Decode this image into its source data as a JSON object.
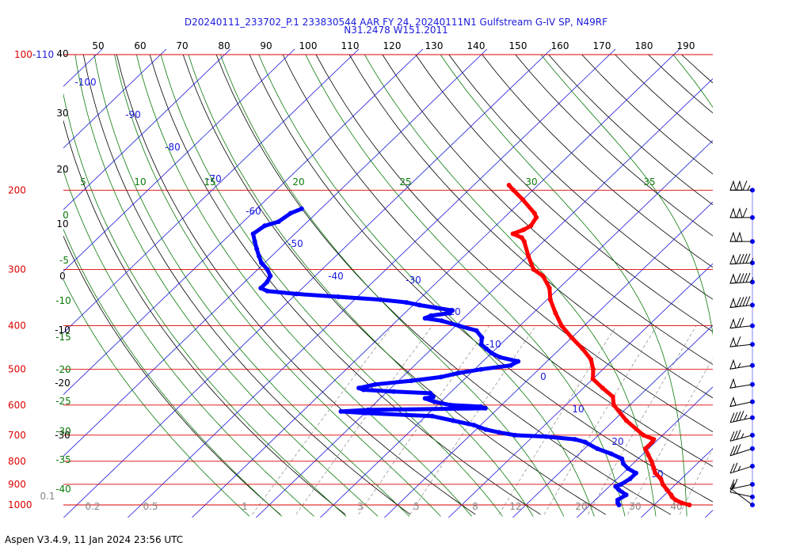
{
  "header": {
    "line1": "D20240111_233702_P.1 233830544 AAR FY 24, 20240111N1 Gulfstream G-IV SP, N49RF",
    "line2": "N31.2478 W151.2011"
  },
  "footer": {
    "text": "Aspen V3.4.9, 11 Jan 2024  23:56 UTC"
  },
  "colors": {
    "isobar": "#dd0000",
    "isotherm": "#1a1adc",
    "dry_adiabat": "#000000",
    "moist_adiabat": "#0a7a0a",
    "mixing_ratio": "#888888",
    "temperature": "#ff0000",
    "dewpoint": "#0000ff"
  },
  "chart_data": {
    "type": "line",
    "title": "",
    "xlabel": "",
    "ylabel": "",
    "diagram": "skew-T log-P",
    "y_axis_pressure_labels": [
      {
        "p": 1000,
        "label": "1000"
      },
      {
        "p": 900,
        "label": "900"
      },
      {
        "p": 800,
        "label": "800"
      },
      {
        "p": 700,
        "label": "700"
      },
      {
        "p": 600,
        "label": "600"
      },
      {
        "p": 500,
        "label": "500"
      },
      {
        "p": 400,
        "label": "400"
      },
      {
        "p": 300,
        "label": "300"
      },
      {
        "p": 200,
        "label": "200"
      },
      {
        "p": 100,
        "label": "100-110"
      }
    ],
    "top_tick_labels": [
      "50",
      "60",
      "70",
      "80",
      "90",
      "100",
      "110",
      "120",
      "130",
      "140",
      "150",
      "160",
      "170",
      "180",
      "190"
    ],
    "isotherm_labels": [
      "-100",
      "-90",
      "-80",
      "-70",
      "-60",
      "-50",
      "-40",
      "-30",
      "-20",
      "-10",
      "0",
      "10",
      "20",
      "30"
    ],
    "dry_adiabat_labels": [
      "40",
      "30",
      "20",
      "10",
      "0",
      "-10",
      "-20",
      "-30"
    ],
    "moist_adiabat_labels": [
      "5",
      "10",
      "15",
      "20",
      "25",
      "30",
      "35",
      "0",
      "-5",
      "-10",
      "-15",
      "-20",
      "-25",
      "-30",
      "-35",
      "-40"
    ],
    "mixing_ratio_labels": [
      "0.1",
      "0.2",
      "0.5",
      "1",
      "3",
      "5",
      "8",
      "12",
      "20",
      "30",
      "40"
    ],
    "series": [
      {
        "id": "temperature",
        "points": [
          [
            1000,
            25.5
          ],
          [
            990,
            24.0
          ],
          [
            975,
            22.5
          ],
          [
            960,
            21.5
          ],
          [
            950,
            21.0
          ],
          [
            925,
            19.5
          ],
          [
            900,
            18.0
          ],
          [
            875,
            16.8
          ],
          [
            850,
            15.0
          ],
          [
            825,
            13.8
          ],
          [
            800,
            12.5
          ],
          [
            775,
            11.0
          ],
          [
            750,
            9.5
          ],
          [
            725,
            9.5
          ],
          [
            715,
            9.3
          ],
          [
            700,
            7.0
          ],
          [
            650,
            2.0
          ],
          [
            600,
            -2.5
          ],
          [
            575,
            -4.0
          ],
          [
            550,
            -7.0
          ],
          [
            525,
            -10.0
          ],
          [
            500,
            -11.5
          ],
          [
            475,
            -13.5
          ],
          [
            450,
            -16.5
          ],
          [
            425,
            -20.0
          ],
          [
            400,
            -23.5
          ],
          [
            375,
            -26.5
          ],
          [
            350,
            -29.5
          ],
          [
            330,
            -31.5
          ],
          [
            310,
            -34.5
          ],
          [
            300,
            -37.0
          ],
          [
            280,
            -40.0
          ],
          [
            260,
            -43.0
          ],
          [
            255,
            -44.0
          ],
          [
            250,
            -46.0
          ],
          [
            245,
            -45.0
          ],
          [
            240,
            -44.5
          ],
          [
            230,
            -45.0
          ],
          [
            225,
            -46.0
          ],
          [
            210,
            -50.0
          ],
          [
            200,
            -53.0
          ],
          [
            195,
            -54.5
          ]
        ]
      },
      {
        "id": "dewpoint",
        "points": [
          [
            1000,
            14.5
          ],
          [
            990,
            14.0
          ],
          [
            975,
            13.5
          ],
          [
            950,
            14.0
          ],
          [
            925,
            12.0
          ],
          [
            910,
            11.0
          ],
          [
            900,
            11.5
          ],
          [
            875,
            12.0
          ],
          [
            850,
            12.0
          ],
          [
            830,
            10.0
          ],
          [
            810,
            8.5
          ],
          [
            790,
            7.5
          ],
          [
            770,
            5.0
          ],
          [
            750,
            2.0
          ],
          [
            725,
            -1.0
          ],
          [
            715,
            -3.0
          ],
          [
            705,
            -8.0
          ],
          [
            700,
            -13.0
          ],
          [
            690,
            -16.0
          ],
          [
            680,
            -18.5
          ],
          [
            665,
            -21.0
          ],
          [
            650,
            -25.0
          ],
          [
            635,
            -29.0
          ],
          [
            625,
            -40.0
          ],
          [
            620,
            -44.0
          ],
          [
            615,
            -40.0
          ],
          [
            610,
            -22.0
          ],
          [
            605,
            -23.0
          ],
          [
            600,
            -28.0
          ],
          [
            590,
            -31.0
          ],
          [
            580,
            -33.0
          ],
          [
            575,
            -32.0
          ],
          [
            565,
            -33.0
          ],
          [
            560,
            -39.0
          ],
          [
            555,
            -44.0
          ],
          [
            550,
            -45.0
          ],
          [
            540,
            -43.0
          ],
          [
            530,
            -38.0
          ],
          [
            520,
            -34.0
          ],
          [
            510,
            -32.0
          ],
          [
            500,
            -29.0
          ],
          [
            490,
            -25.0
          ],
          [
            480,
            -24.5
          ],
          [
            470,
            -28.0
          ],
          [
            460,
            -30.0
          ],
          [
            450,
            -31.5
          ],
          [
            440,
            -33.0
          ],
          [
            425,
            -34.0
          ],
          [
            410,
            -36.0
          ],
          [
            400,
            -39.5
          ],
          [
            390,
            -43.0
          ],
          [
            385,
            -46.0
          ],
          [
            380,
            -45.5
          ],
          [
            375,
            -43.0
          ],
          [
            370,
            -43.0
          ],
          [
            365,
            -46.0
          ],
          [
            360,
            -49.0
          ],
          [
            355,
            -51.5
          ],
          [
            350,
            -56.0
          ],
          [
            345,
            -63.0
          ],
          [
            340,
            -70.0
          ],
          [
            335,
            -75.0
          ],
          [
            330,
            -76.5
          ],
          [
            320,
            -76.5
          ],
          [
            310,
            -77.0
          ],
          [
            300,
            -78.5
          ],
          [
            290,
            -80.5
          ],
          [
            280,
            -82.0
          ],
          [
            270,
            -83.5
          ],
          [
            260,
            -85.0
          ],
          [
            250,
            -86.5
          ],
          [
            240,
            -86.0
          ],
          [
            235,
            -84.5
          ],
          [
            225,
            -84.0
          ],
          [
            220,
            -83.0
          ]
        ]
      }
    ],
    "wind_barbs": [
      {
        "p": 200,
        "speed_kt": 115,
        "dir_deg": 270
      },
      {
        "p": 230,
        "speed_kt": 110,
        "dir_deg": 270
      },
      {
        "p": 260,
        "speed_kt": 100,
        "dir_deg": 270
      },
      {
        "p": 290,
        "speed_kt": 95,
        "dir_deg": 275
      },
      {
        "p": 320,
        "speed_kt": 95,
        "dir_deg": 275
      },
      {
        "p": 360,
        "speed_kt": 90,
        "dir_deg": 280
      },
      {
        "p": 400,
        "speed_kt": 70,
        "dir_deg": 280
      },
      {
        "p": 440,
        "speed_kt": 60,
        "dir_deg": 280
      },
      {
        "p": 490,
        "speed_kt": 55,
        "dir_deg": 285
      },
      {
        "p": 540,
        "speed_kt": 50,
        "dir_deg": 285
      },
      {
        "p": 590,
        "speed_kt": 50,
        "dir_deg": 290
      },
      {
        "p": 640,
        "speed_kt": 45,
        "dir_deg": 290
      },
      {
        "p": 700,
        "speed_kt": 35,
        "dir_deg": 295
      },
      {
        "p": 750,
        "speed_kt": 30,
        "dir_deg": 300
      },
      {
        "p": 820,
        "speed_kt": 25,
        "dir_deg": 300
      },
      {
        "p": 900,
        "speed_kt": 20,
        "dir_deg": 290
      },
      {
        "p": 960,
        "speed_kt": 10,
        "dir_deg": 250
      },
      {
        "p": 1000,
        "speed_kt": 5,
        "dir_deg": 200
      }
    ]
  }
}
